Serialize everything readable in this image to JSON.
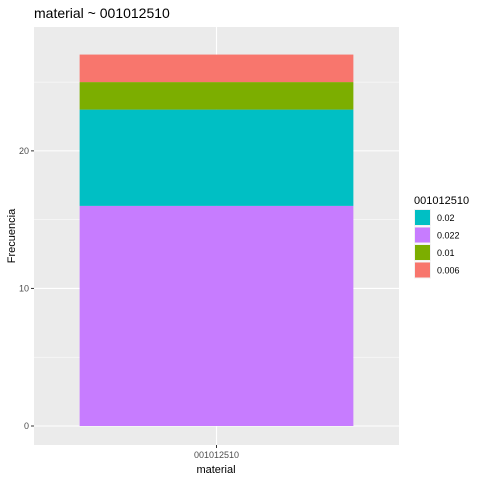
{
  "chart_data": {
    "type": "bar",
    "stacked": true,
    "title": "material ~ 001012510",
    "xlabel": "material",
    "ylabel": "Frecuencia",
    "categories": [
      "001012510"
    ],
    "ylim": [
      0,
      28.35
    ],
    "yticks": [
      0,
      10,
      20
    ],
    "ytick_labels": [
      "0",
      "10",
      "20"
    ],
    "grid": true,
    "legend": {
      "title": "001012510",
      "placement": "right"
    },
    "series": [
      {
        "name": "0.022",
        "values": [
          16
        ],
        "color": "#C77CFF"
      },
      {
        "name": "0.02",
        "values": [
          7
        ],
        "color": "#00BFC4"
      },
      {
        "name": "0.01",
        "values": [
          2
        ],
        "color": "#7CAE00"
      },
      {
        "name": "0.006",
        "values": [
          2
        ],
        "color": "#F8766D"
      }
    ],
    "legend_order": [
      "0.02",
      "0.022",
      "0.01",
      "0.006"
    ]
  }
}
